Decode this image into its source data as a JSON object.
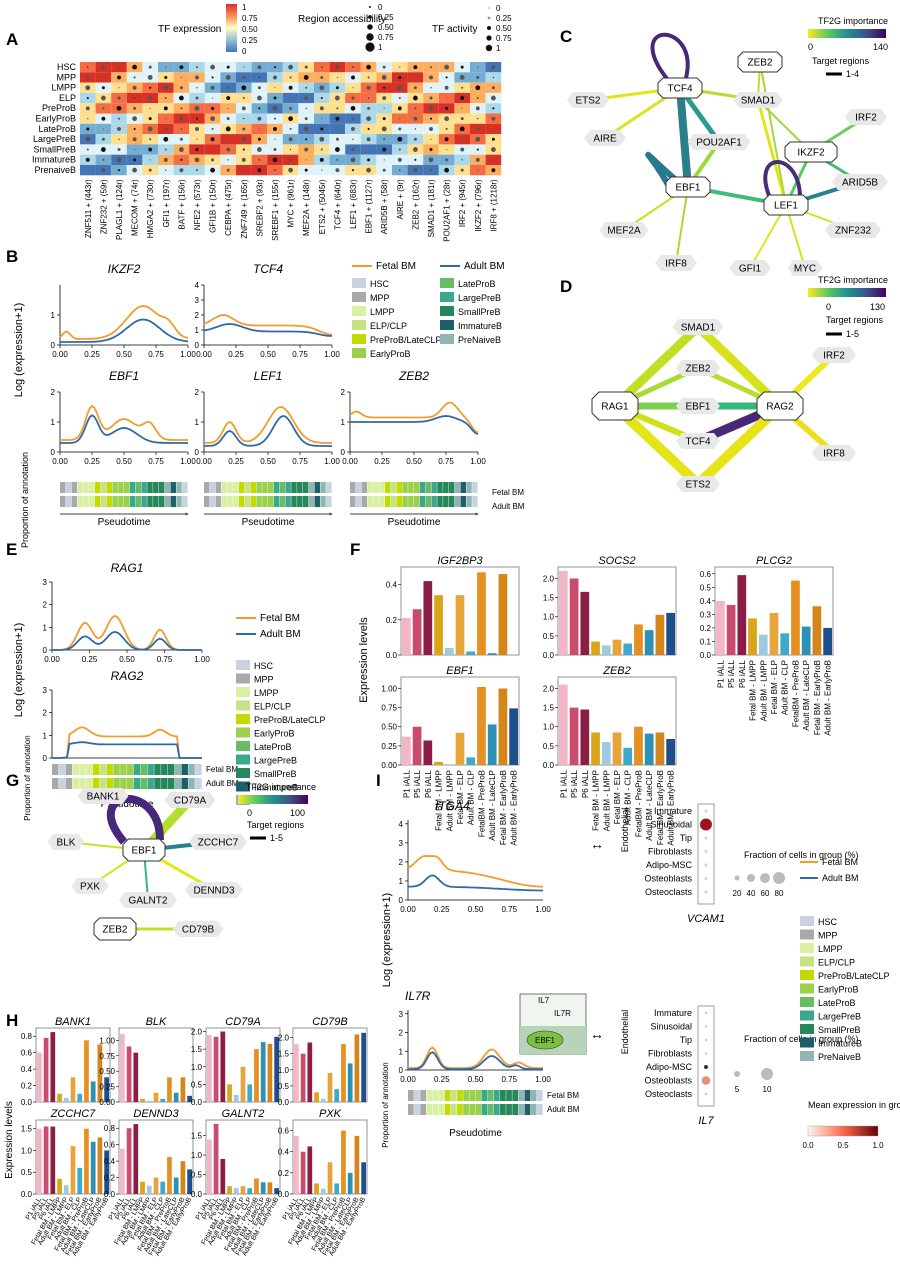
{
  "panels": {
    "A": "A",
    "B": "B",
    "C": "C",
    "D": "D",
    "E": "E",
    "F": "F",
    "G": "G",
    "H": "H",
    "I": "I"
  },
  "colors": {
    "fetal": "#f39c2b",
    "adult": "#2f6aa8",
    "pink": "#f2b6c6",
    "maroon": "#8b1e46",
    "dark": "#6b1331",
    "gold": "#e0a020",
    "blue": "#1f4e8c",
    "cyan": "#41b6c4"
  },
  "heatmap": {
    "legend_expr_title": "TF expression",
    "legend_expr_ticks": [
      "1",
      "0.75",
      "0.50",
      "0.25",
      "0"
    ],
    "legend_region_title": "Region accessibility",
    "legend_region_ticks": [
      "0",
      "0.25",
      "0.50",
      "0.75",
      "1"
    ],
    "legend_activity_title": "TF activity",
    "legend_activity_ticks": [
      "0",
      "0.25",
      "0.50",
      "0.75",
      "1"
    ],
    "rows": [
      "HSC",
      "MPP",
      "LMPP",
      "ELP",
      "PreProB",
      "EarlyProB",
      "LateProB",
      "LargePreB",
      "SmallPreB",
      "ImmatureB",
      "PrenaiveB"
    ],
    "cols": [
      "ZNF511 + (443r)",
      "ZNF232 + (59r)",
      "PLAGL1 + (124r)",
      "MECOM + (74r)",
      "HMGA2 + (730r)",
      "GFI1 + (197r)",
      "BATF + (156r)",
      "NFE2 + (573r)",
      "GFI1B + (150r)",
      "CEBPA + (475r)",
      "ZNF749 + (165r)",
      "SREBF2 + (93r)",
      "SREBF1 + (155r)",
      "MYC + (961r)",
      "MEF2A + (148r)",
      "ETS2 + (5045r)",
      "TCF4 + (640r)",
      "LEF1 + (683r)",
      "EBF1 + (1127r)",
      "ARID5B + (58r)",
      "AIRE + (9r)",
      "ZEB2 + (162r)",
      "SMAD1 + (181r)",
      "POU2AF1 + (28r)",
      "IRF2 + (945r)",
      "IKZF2 + (796r)",
      "IRF8 + (1218r)"
    ]
  },
  "panelB": {
    "ylabel": "Log (expression+1)",
    "xlabel": "Pseudotime",
    "prop_label": "Proportion of annotation",
    "fetal_label": "Fetal BM",
    "adult_label": "Adult BM",
    "genes": [
      "IKZF2",
      "TCF4",
      "EBF1",
      "LEF1",
      "ZEB2"
    ],
    "xticks": [
      "0.00",
      "0.25",
      "0.50",
      "0.75",
      "1.00"
    ],
    "legend_celltypes": [
      "HSC",
      "MPP",
      "LMPP",
      "ELP/CLP",
      "PreProB/LateCLP",
      "EarlyProB",
      "LateProB",
      "LargePreB",
      "SmallPreB",
      "ImmatureB",
      "PreNaiveB"
    ]
  },
  "panelC": {
    "legend_title": "TF2G importance",
    "scale_min": "0",
    "scale_max": "140",
    "target_label": "Target regions",
    "target_range": "1-4",
    "nodes": [
      "TCF4",
      "ZEB2",
      "SMAD1",
      "POU2AF1",
      "IKZF2",
      "EBF1",
      "LEF1",
      "ETS2",
      "AIRE",
      "IRF2",
      "ARID5B",
      "MEF2A",
      "IRF8",
      "GFI1",
      "MYC",
      "ZNF232"
    ]
  },
  "panelD": {
    "legend_title": "TF2G importance",
    "scale_min": "0",
    "scale_max": "130",
    "target_label": "Target regions",
    "target_range": "1-5",
    "nodes": [
      "SMAD1",
      "ZEB2",
      "EBF1",
      "TCF4",
      "RAG1",
      "RAG2",
      "IRF2",
      "IRF8",
      "ETS2"
    ]
  },
  "panelE": {
    "ylabel": "Log (expression+1)",
    "xlabel": "Pseudotime",
    "prop_label": "Proportion of annotation",
    "genes": [
      "RAG1",
      "RAG2"
    ],
    "fetal_label": "Fetal BM",
    "adult_label": "Adult BM"
  },
  "panelF": {
    "ylabel": "Expression levels",
    "xlabels": [
      "P1 iALL",
      "P5 iALL",
      "P6 iALL",
      "Fetal BM - LMPP",
      "Adult BM - LMPP",
      "Fetal BM - ELP",
      "Adult BM - CLP",
      "FetalBM - PreProB",
      "Adult BM - LateCLP",
      "Fetal BM - EarlyProB",
      "Adult BM - EarlyProB"
    ],
    "plots": [
      {
        "gene": "IGF2BP3",
        "ticks": [
          "0.0",
          "0.2",
          "0.4"
        ],
        "ymax": 0.5,
        "values": [
          0.21,
          0.26,
          0.42,
          0.34,
          0.04,
          0.34,
          0.02,
          0.47,
          0.01,
          0.46,
          0.0
        ]
      },
      {
        "gene": "SOCS2",
        "ticks": [
          "0.0",
          "0.5",
          "1.0",
          "1.5",
          "2.0"
        ],
        "ymax": 2.3,
        "values": [
          2.2,
          2.0,
          1.65,
          0.35,
          0.25,
          0.4,
          0.3,
          0.8,
          0.65,
          1.05,
          1.1
        ]
      },
      {
        "gene": "PLCG2",
        "ticks": [
          "0.0",
          "0.1",
          "0.2",
          "0.3",
          "0.4",
          "0.5",
          "0.6"
        ],
        "ymax": 0.65,
        "values": [
          0.4,
          0.37,
          0.59,
          0.27,
          0.15,
          0.31,
          0.16,
          0.55,
          0.21,
          0.36,
          0.2
        ]
      },
      {
        "gene": "EBF1",
        "ticks": [
          "0.00",
          "0.25",
          "0.50",
          "0.75",
          "1.00"
        ],
        "ymax": 1.15,
        "values": [
          0.37,
          0.5,
          0.32,
          0.04,
          0.01,
          0.42,
          0.1,
          1.02,
          0.53,
          1.0,
          0.74
        ]
      },
      {
        "gene": "ZEB2",
        "ticks": [
          "0.0",
          "0.5",
          "1.0",
          "1.5",
          "2.0"
        ],
        "ymax": 2.3,
        "values": [
          2.1,
          1.5,
          1.45,
          0.85,
          0.6,
          0.85,
          0.45,
          1.0,
          0.82,
          0.85,
          0.68
        ]
      }
    ]
  },
  "panelG": {
    "legend_title": "TF2G importance",
    "scale_min": "0",
    "scale_max": "100",
    "target_label": "Target regions",
    "target_range": "1-5",
    "nodes": [
      "BANK1",
      "CD79A",
      "BLK",
      "EBF1",
      "ZCCHC7",
      "PXK",
      "DENND3",
      "GALNT2",
      "ZEB2",
      "CD79B"
    ]
  },
  "panelH": {
    "ylabel": "Expression levels",
    "xlabels": [
      "P1 iALL",
      "P5 iALL",
      "P6 iALL",
      "Fetal BM - LMPP",
      "Adult BM - LMPP",
      "Fetal BM - ELP",
      "Adult BM - CLP",
      "Fetal BM - PreProB",
      "Adult BM - LateCLP",
      "Fetal BM - EarlyProB",
      "Adult BM - EarlyProB"
    ],
    "plots": [
      {
        "gene": "BANK1",
        "ticks": [
          "0.0",
          "0.2",
          "0.4",
          "0.6",
          "0.8"
        ],
        "ymax": 0.9,
        "values": [
          0.6,
          0.78,
          0.85,
          0.1,
          0.05,
          0.3,
          0.1,
          0.75,
          0.25,
          0.7,
          0.3
        ]
      },
      {
        "gene": "BLK",
        "ticks": [
          "0.00",
          "0.25",
          "0.50",
          "0.75",
          "1.00"
        ],
        "ymax": 1.2,
        "values": [
          1.1,
          0.9,
          0.8,
          0.05,
          0.02,
          0.15,
          0.05,
          0.4,
          0.15,
          0.4,
          0.1
        ]
      },
      {
        "gene": "CD79A",
        "ticks": [
          "0.0",
          "0.5",
          "1.0",
          "1.5",
          "2.0"
        ],
        "ymax": 2.1,
        "values": [
          1.9,
          1.85,
          2.0,
          0.5,
          0.2,
          1.0,
          0.5,
          1.5,
          1.7,
          1.65,
          1.85
        ]
      },
      {
        "gene": "CD79B",
        "ticks": [
          "0.0",
          "0.5",
          "1.0",
          "1.5",
          "2.0"
        ],
        "ymax": 2.3,
        "values": [
          1.8,
          1.5,
          1.85,
          0.3,
          0.1,
          0.9,
          0.4,
          1.8,
          1.2,
          2.1,
          2.15
        ]
      },
      {
        "gene": "ZCCHC7",
        "ticks": [
          "0.0",
          "0.5",
          "1.0",
          "1.5"
        ],
        "ymax": 1.7,
        "values": [
          1.5,
          1.55,
          1.55,
          0.35,
          0.2,
          1.1,
          0.6,
          1.5,
          1.2,
          1.3,
          1.0
        ]
      },
      {
        "gene": "DENND3",
        "ticks": [
          "0.0",
          "0.2",
          "0.4",
          "0.6",
          "0.8"
        ],
        "ymax": 0.9,
        "values": [
          0.55,
          0.8,
          0.85,
          0.15,
          0.1,
          0.2,
          0.15,
          0.45,
          0.2,
          0.4,
          0.3
        ]
      },
      {
        "gene": "GALNT2",
        "ticks": [
          "0.0",
          "0.5",
          "1.0",
          "1.5"
        ],
        "ymax": 1.9,
        "values": [
          1.4,
          1.8,
          0.9,
          0.2,
          0.15,
          0.2,
          0.15,
          0.4,
          0.3,
          0.3,
          0.15
        ]
      },
      {
        "gene": "PXK",
        "ticks": [
          "0.0",
          "0.2",
          "0.4",
          "0.6"
        ],
        "ymax": 0.7,
        "values": [
          0.55,
          0.4,
          0.45,
          0.1,
          0.05,
          0.3,
          0.1,
          0.6,
          0.2,
          0.55,
          0.3
        ]
      }
    ]
  },
  "panelI": {
    "genes": [
      "ITGA4",
      "IL7R"
    ],
    "ylabel": "Log (expression+1)",
    "xlabel": "Pseudotime",
    "prop_label": "Proportion of annotation",
    "fetal_label": "Fetal BM",
    "adult_label": "Adult BM",
    "dot_rows": [
      "Immature",
      "Sinusoidal",
      "Tip",
      "Fibroblasts",
      "Adipo-MSC",
      "Osteoblasts",
      "Osteoclasts"
    ],
    "endothelial": "Endothelial",
    "dot_gene_top": "VCAM1",
    "dot_gene_bottom": "IL7",
    "fraction_title": "Fraction of cells in group (%)",
    "fraction_top_ticks": [
      "20",
      "40",
      "60",
      "80"
    ],
    "fraction_bottom_ticks": [
      "5",
      "10"
    ],
    "mean_title": "Mean expression in group",
    "mean_ticks": [
      "0.0",
      "0.5",
      "1.0"
    ],
    "schematic_il7": "IL7",
    "schematic_il7r": "IL7R",
    "schematic_ebf1": "EBF1",
    "legend_celltypes": [
      "HSC",
      "MPP",
      "LMPP",
      "ELP/CLP",
      "PreProB/LateCLP",
      "EarlyProB",
      "LateProB",
      "LargePreB",
      "SmallPreB",
      "ImmatureB",
      "PreNaiveB"
    ]
  }
}
